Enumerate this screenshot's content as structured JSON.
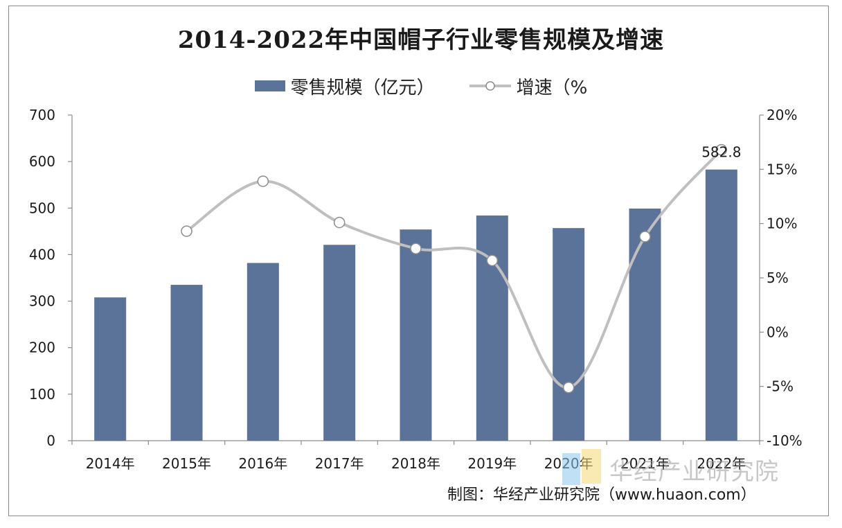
{
  "title": "2014-2022年中国帽子行业零售规模及增速",
  "source": "制图：华经产业研究院（www.huaon.com）",
  "watermark": "华经产业研究院",
  "legend": {
    "bar_label": "零售规模（亿元）",
    "line_label": "增速（%"
  },
  "colors": {
    "bar": "#5b7299",
    "line": "#bfbfbf",
    "marker_fill": "#ffffff",
    "marker_stroke": "#8c8c8c"
  },
  "chart_data": {
    "type": "bar",
    "title": "2014-2022年中国帽子行业零售规模及增速",
    "categories": [
      "2014年",
      "2015年",
      "2016年",
      "2017年",
      "2018年",
      "2019年",
      "2020年",
      "2021年",
      "2022年"
    ],
    "series": [
      {
        "name": "零售规模（亿元）",
        "type": "bar",
        "axis": "left",
        "values": [
          308,
          335,
          382,
          421,
          454,
          484,
          457,
          499,
          582.8
        ]
      },
      {
        "name": "增速（%",
        "type": "line",
        "smooth": true,
        "axis": "right",
        "values": [
          null,
          9.3,
          13.9,
          10.1,
          7.7,
          6.6,
          -5.1,
          8.8,
          16.8
        ]
      }
    ],
    "left_axis": {
      "ylim": [
        0,
        700
      ],
      "ticks": [
        0,
        100,
        200,
        300,
        400,
        500,
        600,
        700
      ],
      "tick_labels": [
        "0",
        "100",
        "200",
        "300",
        "400",
        "500",
        "600",
        "700"
      ]
    },
    "right_axis": {
      "ylim": [
        -10,
        20
      ],
      "ticks": [
        -10,
        -5,
        0,
        5,
        10,
        15,
        20
      ],
      "tick_labels": [
        "-10%",
        "-5%",
        "0%",
        "5%",
        "10%",
        "15%",
        "20%"
      ]
    },
    "data_labels": [
      {
        "index": 8,
        "series": 0,
        "text": "582.8"
      }
    ],
    "legend_position": "top-center",
    "grid": false
  }
}
